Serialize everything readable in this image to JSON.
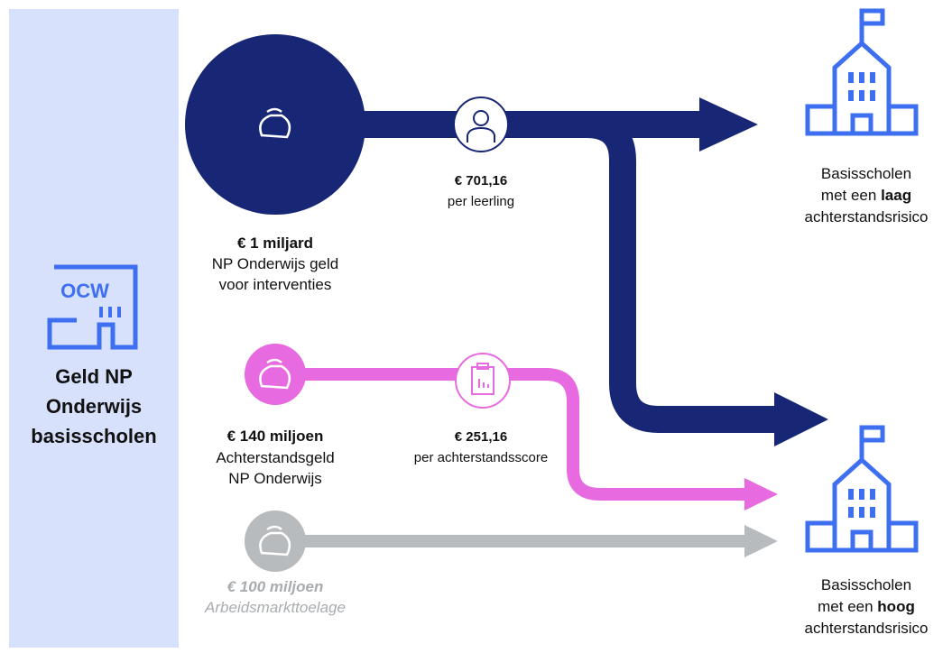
{
  "source": {
    "logo": "OCW",
    "title_lines": [
      "Geld NP",
      "Onderwijs",
      "basisscholen"
    ]
  },
  "flows": [
    {
      "amount": "€ 1 miljard",
      "desc_lines": [
        "NP Onderwijs geld",
        "voor interventies"
      ],
      "rate": "€ 701,16",
      "rate_unit": "per leerling"
    },
    {
      "amount": "€ 140 miljoen",
      "desc_lines": [
        "Achterstandsgeld",
        "NP Onderwijs"
      ],
      "rate": "€ 251,16",
      "rate_unit": "per achterstandsscore"
    },
    {
      "amount": "€ 100 miljoen",
      "desc_lines": [
        "Arbeidsmarkttoelage"
      ]
    }
  ],
  "targets": [
    {
      "line1": "Basisscholen",
      "line2": "met een ",
      "line2_bold": "laag",
      "line3": "achterstandsrisico"
    },
    {
      "line1": "Basisscholen",
      "line2": "met een ",
      "line2_bold": "hoog",
      "line3": "achterstandsrisico"
    }
  ]
}
